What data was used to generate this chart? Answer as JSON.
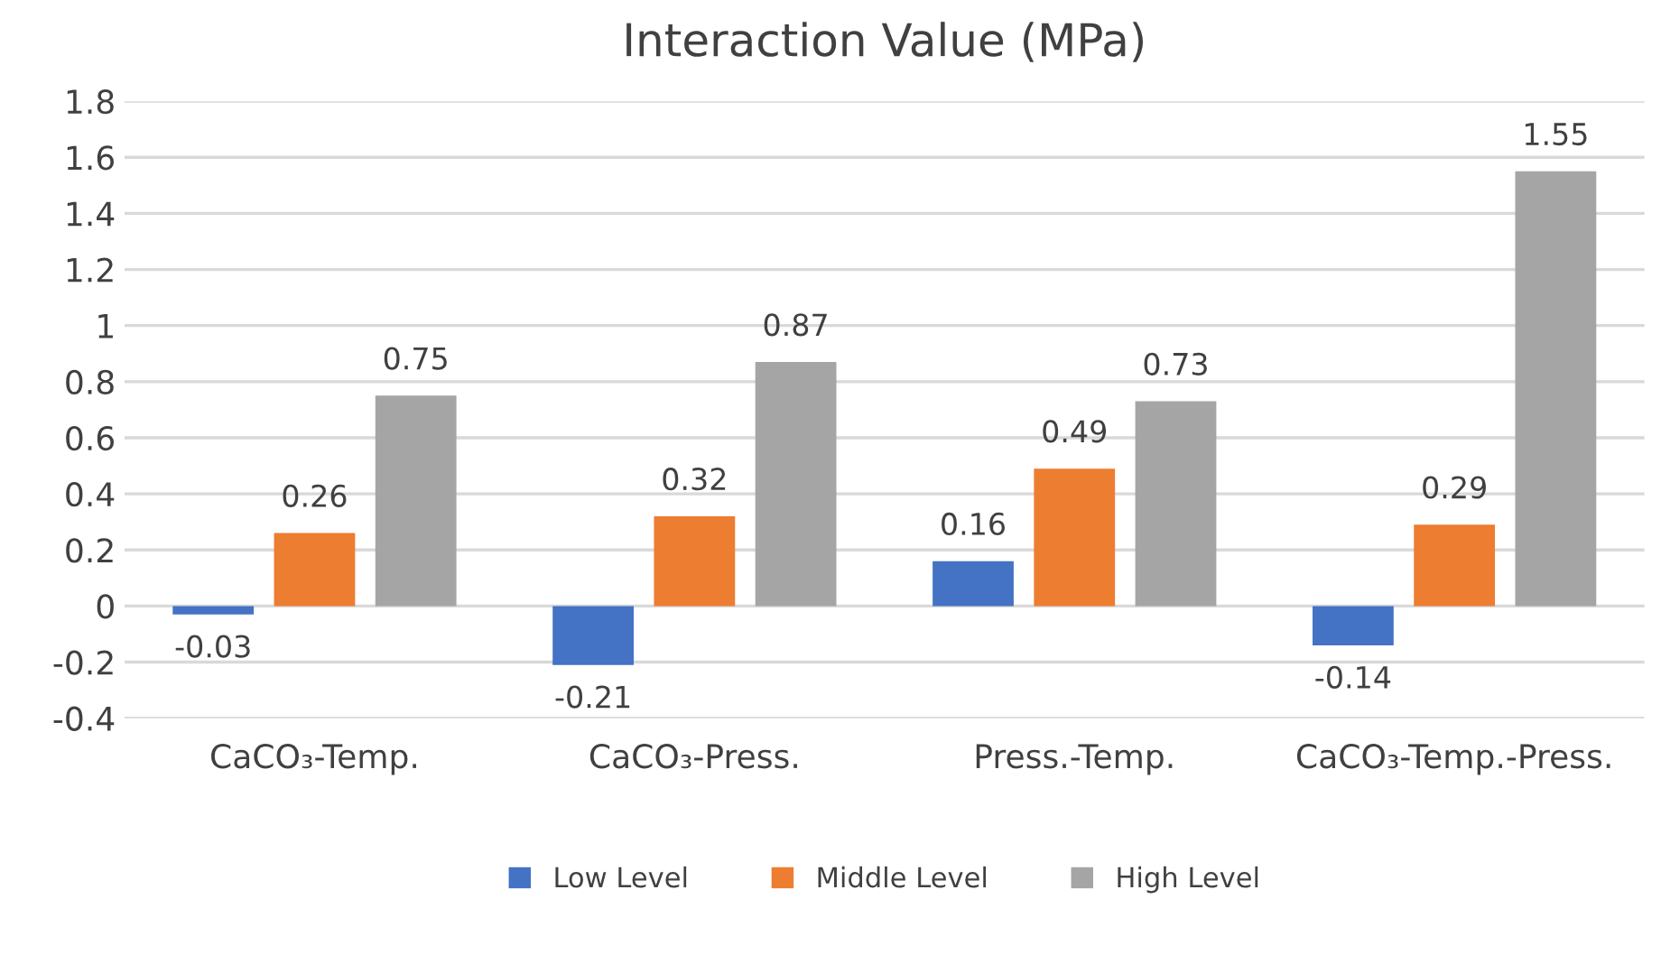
{
  "chart_data": {
    "type": "bar",
    "title": "Interaction Value (MPa)",
    "categories": [
      "CaCO₃-Temp.",
      "CaCO₃-Press.",
      "Press.-Temp.",
      "CaCO₃-Temp.-Press."
    ],
    "series": [
      {
        "name": "Low Level",
        "color": "#4472c4",
        "values": [
          -0.03,
          -0.21,
          0.16,
          -0.14
        ]
      },
      {
        "name": "Middle Level",
        "color": "#ed7d31",
        "values": [
          0.26,
          0.32,
          0.49,
          0.29
        ]
      },
      {
        "name": "High Level",
        "color": "#a5a5a5",
        "values": [
          0.75,
          0.87,
          0.73,
          1.55
        ]
      }
    ],
    "ylim": [
      -0.4,
      1.8
    ],
    "yticks": [
      {
        "value": -0.4,
        "label": "-0.4"
      },
      {
        "value": -0.2,
        "label": "-0.2"
      },
      0,
      0.2,
      0.4,
      0.6,
      0.8,
      1,
      1.2,
      1.4,
      1.6,
      1.8
    ],
    "grid": "y",
    "legend": "bottom",
    "data_labels": true
  }
}
